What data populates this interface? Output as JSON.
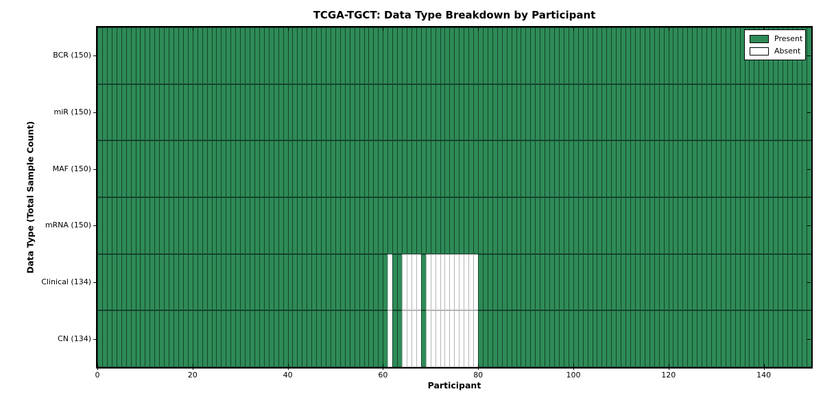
{
  "chart_data": {
    "type": "heatmap",
    "title": "TCGA-TGCT: Data Type Breakdown by Participant",
    "xlabel": "Participant",
    "ylabel": "Data Type (Total Sample Count)",
    "x_ticks": [
      0,
      20,
      40,
      60,
      80,
      100,
      120,
      140
    ],
    "xlim": [
      0,
      150
    ],
    "n_participants": 150,
    "legend_position": "upper right",
    "legend": [
      {
        "label": "Present",
        "color": "#2e8b57"
      },
      {
        "label": "Absent",
        "color": "#ffffff"
      }
    ],
    "rows": [
      {
        "data_type": "BCR",
        "label": "BCR (150)",
        "present_count": 150,
        "absent_participants": []
      },
      {
        "data_type": "miR",
        "label": "miR (150)",
        "present_count": 150,
        "absent_participants": []
      },
      {
        "data_type": "MAF",
        "label": "MAF (150)",
        "present_count": 150,
        "absent_participants": []
      },
      {
        "data_type": "mRNA",
        "label": "mRNA (150)",
        "present_count": 150,
        "absent_participants": []
      },
      {
        "data_type": "Clinical",
        "label": "Clinical (134)",
        "present_count": 134,
        "absent_participants": [
          61,
          64,
          65,
          66,
          67,
          69,
          70,
          71,
          72,
          73,
          74,
          75,
          76,
          77,
          78,
          79
        ]
      },
      {
        "data_type": "CN",
        "label": "CN (134)",
        "present_count": 134,
        "absent_participants": [
          61,
          64,
          65,
          66,
          67,
          69,
          70,
          71,
          72,
          73,
          74,
          75,
          76,
          77,
          78,
          79
        ]
      }
    ]
  }
}
